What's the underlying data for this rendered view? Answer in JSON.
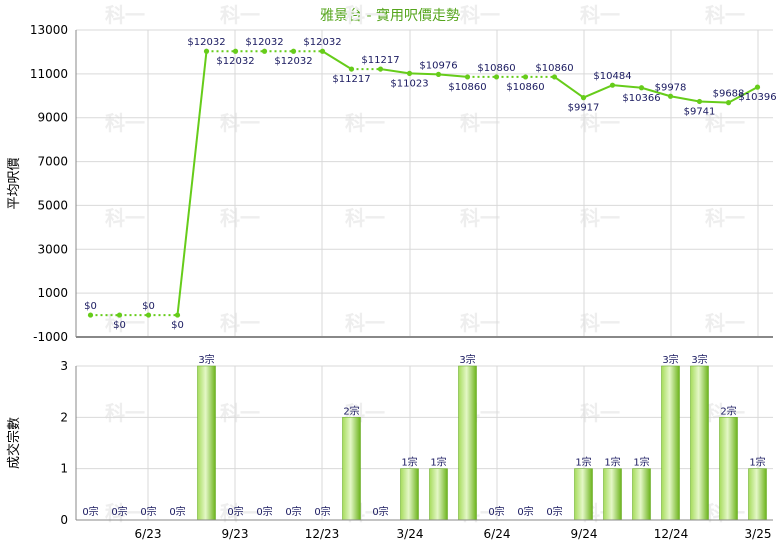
{
  "chart_data": [
    {
      "type": "line",
      "title": "雅景台 - 實用呎價走勢",
      "ylabel": "平均呎價",
      "ylim": [
        -1000,
        13000
      ],
      "yticks": [
        "-1000",
        "1000",
        "3000",
        "5000",
        "7000",
        "9000",
        "11000",
        "13000"
      ],
      "grid": true,
      "series": [
        {
          "values": [
            0,
            0,
            0,
            0,
            12032,
            12032,
            12032,
            12032,
            12032,
            11217,
            11217,
            11023,
            10976,
            10860,
            10860,
            10860,
            10860,
            9917,
            10484,
            10366,
            9978,
            9741,
            9688,
            10396
          ],
          "labels": [
            "$0",
            "$0",
            "$0",
            "$0",
            "$12032",
            "$12032",
            "$12032",
            "$12032",
            "$12032",
            "$11217",
            "$11217",
            "$11023",
            "$10976",
            "$10860",
            "$10860",
            "$10860",
            "$10860",
            "$9917",
            "$10484",
            "$10366",
            "$9978",
            "$9741",
            "$9688",
            "$10396"
          ],
          "color": "#66cc1a"
        }
      ]
    },
    {
      "type": "bar",
      "ylabel": "成交宗數",
      "ylim": [
        0,
        3
      ],
      "yticks": [
        "0",
        "1",
        "2",
        "3"
      ],
      "grid": true,
      "categories": [
        "6/23",
        "9/23",
        "12/23",
        "3/24",
        "6/24",
        "9/24",
        "12/24",
        "3/25"
      ],
      "values": [
        0,
        0,
        0,
        0,
        3,
        0,
        0,
        0,
        0,
        2,
        0,
        1,
        1,
        3,
        0,
        0,
        0,
        1,
        1,
        1,
        3,
        3,
        2,
        1
      ],
      "labels": [
        "0宗",
        "0宗",
        "0宗",
        "0宗",
        "3宗",
        "0宗",
        "0宗",
        "0宗",
        "0宗",
        "2宗",
        "0宗",
        "1宗",
        "1宗",
        "3宗",
        "0宗",
        "0宗",
        "0宗",
        "1宗",
        "1宗",
        "1宗",
        "3宗",
        "3宗",
        "2宗",
        "1宗"
      ],
      "color": "#7cc520"
    }
  ],
  "watermark": "科一"
}
